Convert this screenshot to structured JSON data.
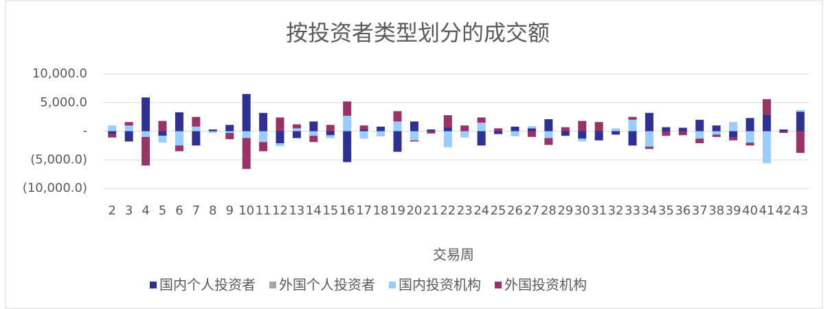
{
  "chart_data": {
    "type": "stacked_bar",
    "title": "按投资者类型划分的成交额",
    "x_label": "交易周",
    "categories": [
      "2",
      "3",
      "4",
      "5",
      "6",
      "7",
      "8",
      "9",
      "10",
      "11",
      "12",
      "13",
      "14",
      "15",
      "16",
      "17",
      "18",
      "19",
      "20",
      "21",
      "22",
      "23",
      "24",
      "25",
      "26",
      "27",
      "28",
      "29",
      "30",
      "31",
      "32",
      "33",
      "34",
      "35",
      "36",
      "37",
      "38",
      "39",
      "40",
      "41",
      "42",
      "43"
    ],
    "series": [
      {
        "name": "国内个人投资者",
        "color": "#2e3192",
        "values": [
          -500,
          -1800,
          5900,
          -800,
          3300,
          -2500,
          300,
          1100,
          6500,
          3200,
          -2100,
          -1200,
          1700,
          -700,
          -5400,
          300,
          800,
          -3600,
          1700,
          300,
          700,
          0,
          -2500,
          -500,
          800,
          500,
          2100,
          -800,
          -1300,
          -1600,
          -600,
          -2500,
          3200,
          700,
          600,
          2000,
          1000,
          -1100,
          2300,
          2900,
          300,
          3400
        ]
      },
      {
        "name": "外国个人投资者",
        "color": "#a5a5a5",
        "values": [
          0,
          0,
          0,
          0,
          0,
          0,
          0,
          0,
          0,
          0,
          0,
          0,
          0,
          0,
          0,
          0,
          0,
          0,
          0,
          0,
          0,
          0,
          0,
          0,
          0,
          0,
          0,
          0,
          0,
          0,
          0,
          0,
          0,
          0,
          0,
          0,
          0,
          0,
          0,
          0,
          0,
          0
        ]
      },
      {
        "name": "国内投资机构",
        "color": "#99ccff",
        "values": [
          1000,
          1000,
          -1000,
          -1200,
          -2500,
          800,
          -300,
          -300,
          -1200,
          -1900,
          -500,
          500,
          -800,
          -500,
          2700,
          -1300,
          -900,
          1700,
          -1600,
          0,
          -2800,
          -1100,
          1500,
          0,
          -900,
          400,
          -1200,
          0,
          -500,
          0,
          500,
          2000,
          -2700,
          0,
          0,
          -1300,
          -600,
          1600,
          -2000,
          -5600,
          0,
          300
        ]
      },
      {
        "name": "外国投资机构",
        "color": "#993366",
        "values": [
          -600,
          600,
          -5000,
          1800,
          -1000,
          1700,
          0,
          -1100,
          -5400,
          -1600,
          2400,
          700,
          -1100,
          1100,
          2500,
          700,
          0,
          1800,
          -200,
          -400,
          2100,
          1000,
          900,
          500,
          0,
          -1000,
          -1200,
          700,
          1800,
          1600,
          0,
          500,
          -400,
          -800,
          -700,
          -800,
          -400,
          -500,
          -500,
          2700,
          -300,
          -3800
        ]
      }
    ],
    "ylim": [
      -10000,
      10000
    ],
    "yticks": [
      {
        "value": -10000,
        "label": "(10,000.0)"
      },
      {
        "value": -5000,
        "label": "(5,000.0)"
      },
      {
        "value": 0,
        "label": "-"
      },
      {
        "value": 5000,
        "label": "5,000.0"
      },
      {
        "value": 10000,
        "label": "10,000.0"
      }
    ],
    "grid": true,
    "legend": "bottom"
  }
}
